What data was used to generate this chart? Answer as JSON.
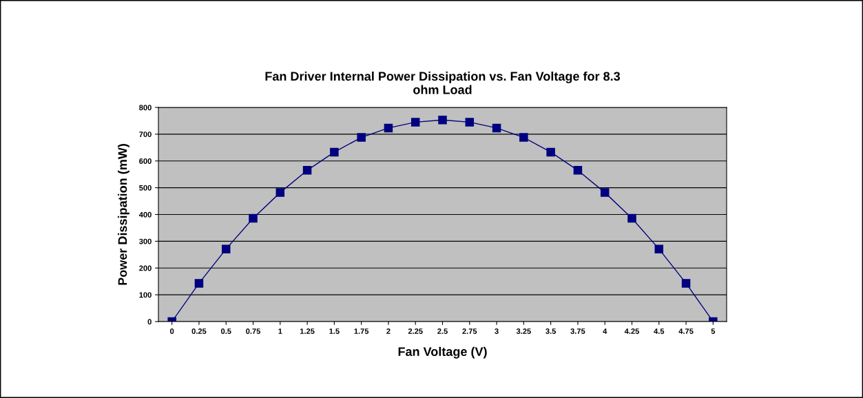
{
  "chart_data": {
    "type": "line",
    "title": "Fan Driver Internal Power Dissipation vs. Fan Voltage for 8.3\nohm Load",
    "xlabel": "Fan Voltage (V)",
    "ylabel": "Power Dissipation (mW)",
    "categories": [
      "0",
      "0.25",
      "0.5",
      "0.75",
      "1",
      "1.25",
      "1.5",
      "1.75",
      "2",
      "2.25",
      "2.5",
      "2.75",
      "3",
      "3.25",
      "3.5",
      "3.75",
      "4",
      "4.25",
      "4.5",
      "4.75",
      "5"
    ],
    "series": [
      {
        "color": "#000080",
        "values": [
          0,
          143,
          271,
          386,
          482,
          565,
          633,
          688,
          723,
          745,
          753,
          745,
          723,
          688,
          633,
          565,
          482,
          386,
          271,
          143,
          0
        ]
      }
    ],
    "ylim": [
      0,
      800
    ],
    "yticks": [
      0,
      100,
      200,
      300,
      400,
      500,
      600,
      700,
      800
    ],
    "grid": "y",
    "marker": "square",
    "line_style": "solid"
  }
}
